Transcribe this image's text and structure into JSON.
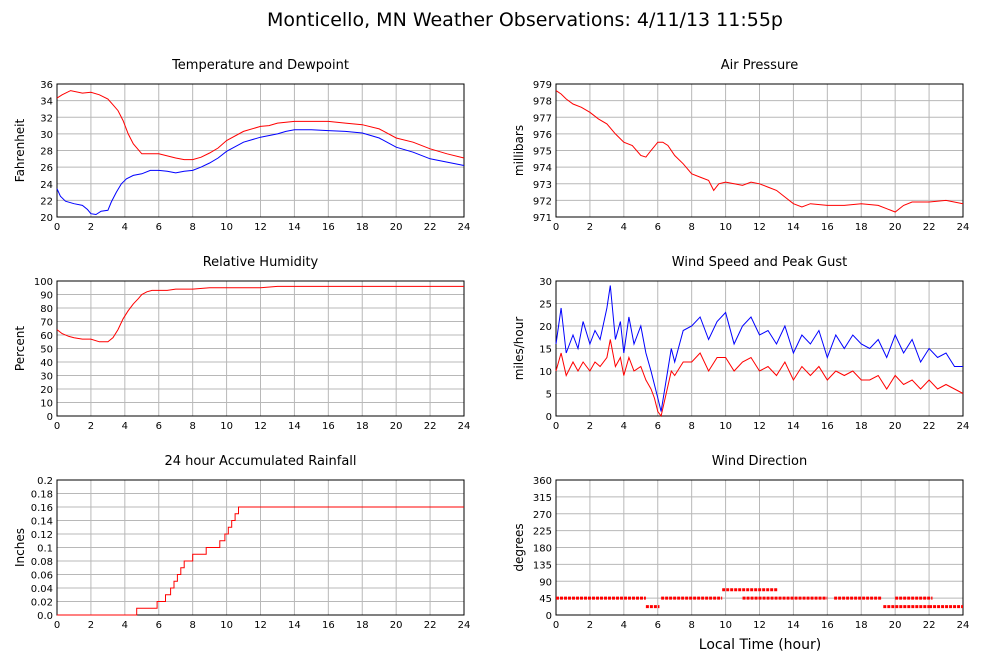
{
  "title": "Monticello, MN Weather Observations: 4/11/13 11:55p",
  "xlabel": "Local Time (hour)",
  "chart_data": [
    {
      "id": "temperature",
      "type": "line",
      "title": "Temperature and Dewpoint",
      "ylabel": "Fahrenheit",
      "xlim": [
        0,
        24
      ],
      "ylim": [
        20,
        36
      ],
      "xticks": [
        0,
        2,
        4,
        6,
        8,
        10,
        12,
        14,
        16,
        18,
        20,
        22,
        24
      ],
      "yticks": [
        20,
        22,
        24,
        26,
        28,
        30,
        32,
        34,
        36
      ],
      "grid": true,
      "series": [
        {
          "color": "#ff0000",
          "x": [
            0,
            0.3,
            0.8,
            1.5,
            2.0,
            2.5,
            3.0,
            3.3,
            3.6,
            3.9,
            4.2,
            4.5,
            5.0,
            6.0,
            7.0,
            7.5,
            8.0,
            8.5,
            9.0,
            9.5,
            10.0,
            11.0,
            12.0,
            12.5,
            13.0,
            14.0,
            15.0,
            16.0,
            17.0,
            18.0,
            19.0,
            20.0,
            21.0,
            22.0,
            23.0,
            24.0
          ],
          "y": [
            34.3,
            34.7,
            35.2,
            34.9,
            35.0,
            34.7,
            34.2,
            33.5,
            32.8,
            31.6,
            30.0,
            28.8,
            27.6,
            27.6,
            27.1,
            26.9,
            26.9,
            27.2,
            27.7,
            28.3,
            29.2,
            30.3,
            30.9,
            31.0,
            31.3,
            31.5,
            31.5,
            31.5,
            31.3,
            31.1,
            30.6,
            29.5,
            29.0,
            28.2,
            27.6,
            27.1
          ]
        },
        {
          "color": "#0000ff",
          "x": [
            0,
            0.2,
            0.5,
            1.0,
            1.5,
            1.8,
            2.0,
            2.3,
            2.6,
            3.0,
            3.2,
            3.5,
            3.8,
            4.1,
            4.5,
            5.0,
            5.5,
            6.0,
            6.5,
            7.0,
            7.5,
            8.0,
            8.5,
            9.0,
            9.5,
            10.0,
            11.0,
            12.0,
            13.0,
            13.5,
            14.0,
            15.0,
            16.0,
            17.0,
            18.0,
            19.0,
            20.0,
            21.0,
            22.0,
            23.0,
            24.0
          ],
          "y": [
            23.4,
            22.5,
            21.9,
            21.6,
            21.4,
            20.9,
            20.4,
            20.3,
            20.7,
            20.8,
            21.8,
            23.0,
            24.0,
            24.6,
            25.0,
            25.2,
            25.6,
            25.6,
            25.5,
            25.3,
            25.5,
            25.6,
            26.0,
            26.5,
            27.1,
            27.9,
            29.0,
            29.6,
            30.0,
            30.3,
            30.5,
            30.5,
            30.4,
            30.3,
            30.1,
            29.5,
            28.4,
            27.8,
            27.0,
            26.6,
            26.2
          ]
        }
      ]
    },
    {
      "id": "pressure",
      "type": "line",
      "title": "Air Pressure",
      "ylabel": "millibars",
      "xlim": [
        0,
        24
      ],
      "ylim": [
        971,
        979
      ],
      "xticks": [
        0,
        2,
        4,
        6,
        8,
        10,
        12,
        14,
        16,
        18,
        20,
        22,
        24
      ],
      "yticks": [
        971,
        972,
        973,
        974,
        975,
        976,
        977,
        978,
        979
      ],
      "grid": true,
      "series": [
        {
          "color": "#ff0000",
          "x": [
            0,
            0.3,
            0.6,
            1.0,
            1.5,
            2.0,
            2.5,
            3.0,
            3.5,
            4.0,
            4.5,
            5.0,
            5.3,
            5.6,
            6.0,
            6.3,
            6.6,
            7.0,
            7.5,
            8.0,
            8.5,
            9.0,
            9.3,
            9.6,
            10.0,
            10.5,
            11.0,
            11.5,
            12.0,
            12.5,
            13.0,
            13.5,
            14.0,
            14.5,
            15.0,
            16.0,
            17.0,
            18.0,
            19.0,
            19.5,
            20.0,
            20.5,
            21.0,
            22.0,
            23.0,
            24.0
          ],
          "y": [
            978.6,
            978.4,
            978.1,
            977.8,
            977.6,
            977.3,
            976.9,
            976.6,
            976.0,
            975.5,
            975.3,
            974.7,
            974.6,
            975.0,
            975.5,
            975.5,
            975.3,
            974.7,
            974.2,
            973.6,
            973.4,
            973.2,
            972.6,
            973.0,
            973.1,
            973.0,
            972.9,
            973.1,
            973.0,
            972.8,
            972.6,
            972.2,
            971.8,
            971.6,
            971.8,
            971.7,
            971.7,
            971.8,
            971.7,
            971.5,
            971.3,
            971.7,
            971.9,
            971.9,
            972.0,
            971.8
          ]
        }
      ]
    },
    {
      "id": "humidity",
      "type": "line",
      "title": "Relative Humidity",
      "ylabel": "Percent",
      "xlim": [
        0,
        24
      ],
      "ylim": [
        0,
        100
      ],
      "xticks": [
        0,
        2,
        4,
        6,
        8,
        10,
        12,
        14,
        16,
        18,
        20,
        22,
        24
      ],
      "yticks": [
        0,
        10,
        20,
        30,
        40,
        50,
        60,
        70,
        80,
        90,
        100
      ],
      "grid": true,
      "series": [
        {
          "color": "#ff0000",
          "x": [
            0,
            0.3,
            0.7,
            1.0,
            1.5,
            2.0,
            2.5,
            3.0,
            3.3,
            3.6,
            3.9,
            4.2,
            4.5,
            4.8,
            5.0,
            5.3,
            5.6,
            6.0,
            6.5,
            7.0,
            8.0,
            9.0,
            10.0,
            11.0,
            12.0,
            13.0,
            14.0,
            16.0,
            18.0,
            20.0,
            22.0,
            24.0
          ],
          "y": [
            64,
            61,
            59,
            58,
            57,
            57,
            55,
            55,
            58,
            64,
            72,
            78,
            83,
            87,
            90,
            92,
            93,
            93,
            93,
            94,
            94,
            95,
            95,
            95,
            95,
            96,
            96,
            96,
            96,
            96,
            96,
            96
          ]
        }
      ]
    },
    {
      "id": "wind_speed",
      "type": "line",
      "title": "Wind Speed and Peak Gust",
      "ylabel": "miles/hour",
      "xlim": [
        0,
        24
      ],
      "ylim": [
        0,
        30
      ],
      "xticks": [
        0,
        2,
        4,
        6,
        8,
        10,
        12,
        14,
        16,
        18,
        20,
        22,
        24
      ],
      "yticks": [
        0,
        5,
        10,
        15,
        20,
        25,
        30
      ],
      "grid": true,
      "series": [
        {
          "color": "#0000ff",
          "x": [
            0,
            0.3,
            0.6,
            1.0,
            1.3,
            1.6,
            2.0,
            2.3,
            2.6,
            3.0,
            3.2,
            3.5,
            3.8,
            4.0,
            4.3,
            4.6,
            5.0,
            5.3,
            5.6,
            5.8,
            6.0,
            6.2,
            6.5,
            6.8,
            7.0,
            7.5,
            8.0,
            8.5,
            9.0,
            9.5,
            10.0,
            10.5,
            11.0,
            11.5,
            12.0,
            12.5,
            13.0,
            13.5,
            14.0,
            14.5,
            15.0,
            15.5,
            16.0,
            16.5,
            17.0,
            17.5,
            18.0,
            18.5,
            19.0,
            19.5,
            20.0,
            20.5,
            21.0,
            21.5,
            22.0,
            22.5,
            23.0,
            23.5,
            24.0
          ],
          "y": [
            16,
            24,
            14,
            18,
            15,
            21,
            16,
            19,
            17,
            24,
            29,
            17,
            21,
            14,
            22,
            16,
            20,
            14,
            10,
            7,
            4,
            1,
            8,
            15,
            12,
            19,
            20,
            22,
            17,
            21,
            23,
            16,
            20,
            22,
            18,
            19,
            16,
            20,
            14,
            18,
            16,
            19,
            13,
            18,
            15,
            18,
            16,
            15,
            17,
            13,
            18,
            14,
            17,
            12,
            15,
            13,
            14,
            11,
            11
          ]
        },
        {
          "color": "#ff0000",
          "x": [
            0,
            0.3,
            0.6,
            1.0,
            1.3,
            1.6,
            2.0,
            2.3,
            2.6,
            3.0,
            3.2,
            3.5,
            3.8,
            4.0,
            4.3,
            4.6,
            5.0,
            5.3,
            5.6,
            5.8,
            6.0,
            6.2,
            6.5,
            6.8,
            7.0,
            7.5,
            8.0,
            8.5,
            9.0,
            9.5,
            10.0,
            10.5,
            11.0,
            11.5,
            12.0,
            12.5,
            13.0,
            13.5,
            14.0,
            14.5,
            15.0,
            15.5,
            16.0,
            16.5,
            17.0,
            17.5,
            18.0,
            18.5,
            19.0,
            19.5,
            20.0,
            20.5,
            21.0,
            21.5,
            22.0,
            22.5,
            23.0,
            23.5,
            24.0
          ],
          "y": [
            10,
            14,
            9,
            12,
            10,
            12,
            10,
            12,
            11,
            13,
            17,
            11,
            13,
            9,
            13,
            10,
            11,
            8,
            6,
            4,
            1,
            0,
            5,
            10,
            9,
            12,
            12,
            14,
            10,
            13,
            13,
            10,
            12,
            13,
            10,
            11,
            9,
            12,
            8,
            11,
            9,
            11,
            8,
            10,
            9,
            10,
            8,
            8,
            9,
            6,
            9,
            7,
            8,
            6,
            8,
            6,
            7,
            6,
            5
          ]
        }
      ]
    },
    {
      "id": "rainfall",
      "type": "line",
      "title": "24 hour Accumulated Rainfall",
      "ylabel": "Inches",
      "xlim": [
        0,
        24
      ],
      "ylim": [
        0,
        0.2
      ],
      "xticks": [
        0,
        2,
        4,
        6,
        8,
        10,
        12,
        14,
        16,
        18,
        20,
        22,
        24
      ],
      "yticks": [
        "0.0",
        "0.02",
        "0.04",
        "0.06",
        "0.08",
        "0.1",
        "0.12",
        "0.14",
        "0.16",
        "0.18",
        "0.2"
      ],
      "grid": true,
      "series": [
        {
          "color": "#ff0000",
          "step": true,
          "x": [
            0,
            4.7,
            5.9,
            6.4,
            6.7,
            6.9,
            7.1,
            7.3,
            7.5,
            7.7,
            8.0,
            8.8,
            9.6,
            9.9,
            10.1,
            10.3,
            10.5,
            10.7,
            11.0,
            24.0
          ],
          "y": [
            0.0,
            0.01,
            0.02,
            0.03,
            0.04,
            0.05,
            0.06,
            0.07,
            0.08,
            0.08,
            0.09,
            0.1,
            0.11,
            0.12,
            0.13,
            0.14,
            0.15,
            0.16,
            0.16,
            0.16
          ]
        }
      ]
    },
    {
      "id": "wind_direction",
      "type": "scatter",
      "title": "Wind Direction",
      "ylabel": "degrees",
      "xlim": [
        0,
        24
      ],
      "ylim": [
        0,
        360
      ],
      "xticks": [
        0,
        2,
        4,
        6,
        8,
        10,
        12,
        14,
        16,
        18,
        20,
        22,
        24
      ],
      "yticks": [
        0,
        45,
        90,
        135,
        180,
        225,
        270,
        315,
        360
      ],
      "grid": true,
      "series": [
        {
          "color": "#ff0000",
          "segments": [
            {
              "x": [
                0,
                5.3
              ],
              "y": 45
            },
            {
              "x": [
                5.3,
                6.1
              ],
              "y": 22.5
            },
            {
              "x": [
                6.2,
                9.8
              ],
              "y": 45
            },
            {
              "x": [
                9.8,
                13.1
              ],
              "y": 67.5
            },
            {
              "x": [
                11.0,
                16.0
              ],
              "y": 45
            },
            {
              "x": [
                16.4,
                19.2
              ],
              "y": 45
            },
            {
              "x": [
                19.3,
                22.0
              ],
              "y": 22.5
            },
            {
              "x": [
                20.0,
                22.2
              ],
              "y": 45
            },
            {
              "x": [
                22.0,
                24.0
              ],
              "y": 22.5
            }
          ]
        }
      ]
    }
  ]
}
